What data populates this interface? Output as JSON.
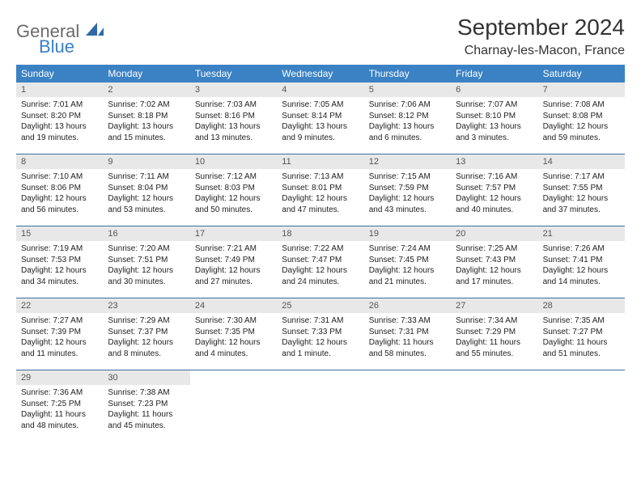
{
  "branding": {
    "logo_word1": "General",
    "logo_word2": "Blue",
    "logo_color_gray": "#6b6b6b",
    "logo_color_blue": "#3b7fc4"
  },
  "header": {
    "month_title": "September 2024",
    "location": "Charnay-les-Macon, France"
  },
  "colors": {
    "header_bg": "#3b82c4",
    "header_text": "#ffffff",
    "daynum_bg": "#e8e8e8",
    "daynum_text": "#555555",
    "week_divider": "#3b6fa0",
    "page_bg": "#ffffff",
    "body_text": "#222222"
  },
  "typography": {
    "title_fontsize": 28,
    "location_fontsize": 16,
    "dayhead_fontsize": 12,
    "daynum_fontsize": 11,
    "cell_fontsize": 10
  },
  "day_headers": [
    "Sunday",
    "Monday",
    "Tuesday",
    "Wednesday",
    "Thursday",
    "Friday",
    "Saturday"
  ],
  "weeks": [
    [
      {
        "n": "1",
        "sunrise": "Sunrise: 7:01 AM",
        "sunset": "Sunset: 8:20 PM",
        "daylight": "Daylight: 13 hours and 19 minutes."
      },
      {
        "n": "2",
        "sunrise": "Sunrise: 7:02 AM",
        "sunset": "Sunset: 8:18 PM",
        "daylight": "Daylight: 13 hours and 15 minutes."
      },
      {
        "n": "3",
        "sunrise": "Sunrise: 7:03 AM",
        "sunset": "Sunset: 8:16 PM",
        "daylight": "Daylight: 13 hours and 13 minutes."
      },
      {
        "n": "4",
        "sunrise": "Sunrise: 7:05 AM",
        "sunset": "Sunset: 8:14 PM",
        "daylight": "Daylight: 13 hours and 9 minutes."
      },
      {
        "n": "5",
        "sunrise": "Sunrise: 7:06 AM",
        "sunset": "Sunset: 8:12 PM",
        "daylight": "Daylight: 13 hours and 6 minutes."
      },
      {
        "n": "6",
        "sunrise": "Sunrise: 7:07 AM",
        "sunset": "Sunset: 8:10 PM",
        "daylight": "Daylight: 13 hours and 3 minutes."
      },
      {
        "n": "7",
        "sunrise": "Sunrise: 7:08 AM",
        "sunset": "Sunset: 8:08 PM",
        "daylight": "Daylight: 12 hours and 59 minutes."
      }
    ],
    [
      {
        "n": "8",
        "sunrise": "Sunrise: 7:10 AM",
        "sunset": "Sunset: 8:06 PM",
        "daylight": "Daylight: 12 hours and 56 minutes."
      },
      {
        "n": "9",
        "sunrise": "Sunrise: 7:11 AM",
        "sunset": "Sunset: 8:04 PM",
        "daylight": "Daylight: 12 hours and 53 minutes."
      },
      {
        "n": "10",
        "sunrise": "Sunrise: 7:12 AM",
        "sunset": "Sunset: 8:03 PM",
        "daylight": "Daylight: 12 hours and 50 minutes."
      },
      {
        "n": "11",
        "sunrise": "Sunrise: 7:13 AM",
        "sunset": "Sunset: 8:01 PM",
        "daylight": "Daylight: 12 hours and 47 minutes."
      },
      {
        "n": "12",
        "sunrise": "Sunrise: 7:15 AM",
        "sunset": "Sunset: 7:59 PM",
        "daylight": "Daylight: 12 hours and 43 minutes."
      },
      {
        "n": "13",
        "sunrise": "Sunrise: 7:16 AM",
        "sunset": "Sunset: 7:57 PM",
        "daylight": "Daylight: 12 hours and 40 minutes."
      },
      {
        "n": "14",
        "sunrise": "Sunrise: 7:17 AM",
        "sunset": "Sunset: 7:55 PM",
        "daylight": "Daylight: 12 hours and 37 minutes."
      }
    ],
    [
      {
        "n": "15",
        "sunrise": "Sunrise: 7:19 AM",
        "sunset": "Sunset: 7:53 PM",
        "daylight": "Daylight: 12 hours and 34 minutes."
      },
      {
        "n": "16",
        "sunrise": "Sunrise: 7:20 AM",
        "sunset": "Sunset: 7:51 PM",
        "daylight": "Daylight: 12 hours and 30 minutes."
      },
      {
        "n": "17",
        "sunrise": "Sunrise: 7:21 AM",
        "sunset": "Sunset: 7:49 PM",
        "daylight": "Daylight: 12 hours and 27 minutes."
      },
      {
        "n": "18",
        "sunrise": "Sunrise: 7:22 AM",
        "sunset": "Sunset: 7:47 PM",
        "daylight": "Daylight: 12 hours and 24 minutes."
      },
      {
        "n": "19",
        "sunrise": "Sunrise: 7:24 AM",
        "sunset": "Sunset: 7:45 PM",
        "daylight": "Daylight: 12 hours and 21 minutes."
      },
      {
        "n": "20",
        "sunrise": "Sunrise: 7:25 AM",
        "sunset": "Sunset: 7:43 PM",
        "daylight": "Daylight: 12 hours and 17 minutes."
      },
      {
        "n": "21",
        "sunrise": "Sunrise: 7:26 AM",
        "sunset": "Sunset: 7:41 PM",
        "daylight": "Daylight: 12 hours and 14 minutes."
      }
    ],
    [
      {
        "n": "22",
        "sunrise": "Sunrise: 7:27 AM",
        "sunset": "Sunset: 7:39 PM",
        "daylight": "Daylight: 12 hours and 11 minutes."
      },
      {
        "n": "23",
        "sunrise": "Sunrise: 7:29 AM",
        "sunset": "Sunset: 7:37 PM",
        "daylight": "Daylight: 12 hours and 8 minutes."
      },
      {
        "n": "24",
        "sunrise": "Sunrise: 7:30 AM",
        "sunset": "Sunset: 7:35 PM",
        "daylight": "Daylight: 12 hours and 4 minutes."
      },
      {
        "n": "25",
        "sunrise": "Sunrise: 7:31 AM",
        "sunset": "Sunset: 7:33 PM",
        "daylight": "Daylight: 12 hours and 1 minute."
      },
      {
        "n": "26",
        "sunrise": "Sunrise: 7:33 AM",
        "sunset": "Sunset: 7:31 PM",
        "daylight": "Daylight: 11 hours and 58 minutes."
      },
      {
        "n": "27",
        "sunrise": "Sunrise: 7:34 AM",
        "sunset": "Sunset: 7:29 PM",
        "daylight": "Daylight: 11 hours and 55 minutes."
      },
      {
        "n": "28",
        "sunrise": "Sunrise: 7:35 AM",
        "sunset": "Sunset: 7:27 PM",
        "daylight": "Daylight: 11 hours and 51 minutes."
      }
    ],
    [
      {
        "n": "29",
        "sunrise": "Sunrise: 7:36 AM",
        "sunset": "Sunset: 7:25 PM",
        "daylight": "Daylight: 11 hours and 48 minutes."
      },
      {
        "n": "30",
        "sunrise": "Sunrise: 7:38 AM",
        "sunset": "Sunset: 7:23 PM",
        "daylight": "Daylight: 11 hours and 45 minutes."
      },
      {
        "empty": true
      },
      {
        "empty": true
      },
      {
        "empty": true
      },
      {
        "empty": true
      },
      {
        "empty": true
      }
    ]
  ]
}
